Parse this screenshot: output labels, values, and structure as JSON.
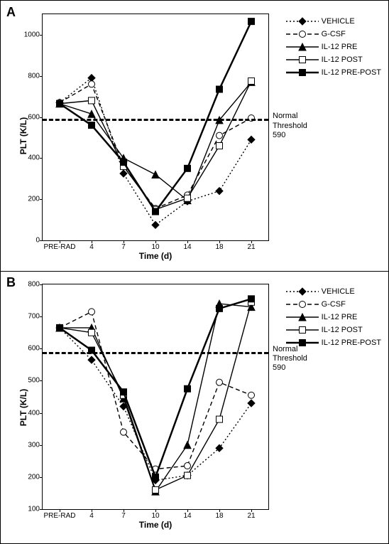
{
  "colors": {
    "fg": "#000000",
    "bg": "#ffffff"
  },
  "typography": {
    "axis_label_fontsize": 12,
    "tick_fontsize": 10,
    "legend_fontsize": 11,
    "panel_letter_fontsize": 18
  },
  "legend": [
    {
      "key": "vehicle",
      "label": "VEHICLE",
      "line": "dotted",
      "marker": "diamond",
      "marker_fill": "#000"
    },
    {
      "key": "gcsf",
      "label": "G-CSF",
      "line": "dashed",
      "marker": "circle",
      "marker_fill": "#fff"
    },
    {
      "key": "il12pre",
      "label": "IL-12 PRE",
      "line": "solid",
      "marker": "triangle",
      "marker_fill": "#000"
    },
    {
      "key": "il12post",
      "label": "IL-12 POST",
      "line": "solid",
      "marker": "square",
      "marker_fill": "#fff"
    },
    {
      "key": "il12prepost",
      "label": "IL-12 PRE-POST",
      "line": "solid",
      "marker": "square",
      "marker_fill": "#000",
      "line_width": 2.5
    }
  ],
  "line_styles": {
    "dotted": {
      "dasharray": "2,3",
      "width": 1.4
    },
    "dashed": {
      "dasharray": "6,4",
      "width": 1.4
    },
    "solid": {
      "dasharray": "",
      "width": 1.4
    }
  },
  "markers": {
    "diamond": {
      "shape": "diamond",
      "size": 5
    },
    "circle": {
      "shape": "circle",
      "size": 4.5
    },
    "triangle": {
      "shape": "triangle",
      "size": 5
    },
    "square": {
      "shape": "square",
      "size": 4.5
    }
  },
  "x_categories": [
    "PRE-RAD",
    "4",
    "7",
    "10",
    "14",
    "18",
    "21"
  ],
  "x_axis_label": "Time (d)",
  "y_axis_label": "PLT (K/L)",
  "threshold": {
    "value": 590,
    "label": "Normal Threshold",
    "value_label": "590"
  },
  "panels": {
    "A": {
      "letter": "A",
      "ylim": [
        0,
        1100
      ],
      "yticks": [
        0,
        200,
        400,
        600,
        800,
        1000
      ],
      "series": {
        "vehicle": [
          670,
          790,
          325,
          75,
          190,
          240,
          490
        ],
        "gcsf": [
          670,
          760,
          360,
          155,
          220,
          510,
          595
        ],
        "il12pre": [
          665,
          615,
          400,
          320,
          195,
          585,
          770
        ],
        "il12post": [
          665,
          680,
          360,
          150,
          205,
          460,
          775
        ],
        "il12prepost": [
          665,
          560,
          380,
          140,
          350,
          735,
          1065
        ]
      }
    },
    "B": {
      "letter": "B",
      "ylim": [
        100,
        800
      ],
      "yticks": [
        100,
        200,
        300,
        400,
        500,
        600,
        700,
        800
      ],
      "series": {
        "vehicle": [
          665,
          565,
          420,
          190,
          205,
          290,
          430
        ],
        "gcsf": [
          665,
          715,
          340,
          225,
          235,
          495,
          455
        ],
        "il12pre": [
          665,
          665,
          445,
          155,
          300,
          740,
          730
        ],
        "il12post": [
          665,
          650,
          455,
          160,
          205,
          380,
          745
        ],
        "il12prepost": [
          665,
          595,
          465,
          200,
          475,
          725,
          755
        ]
      }
    }
  }
}
